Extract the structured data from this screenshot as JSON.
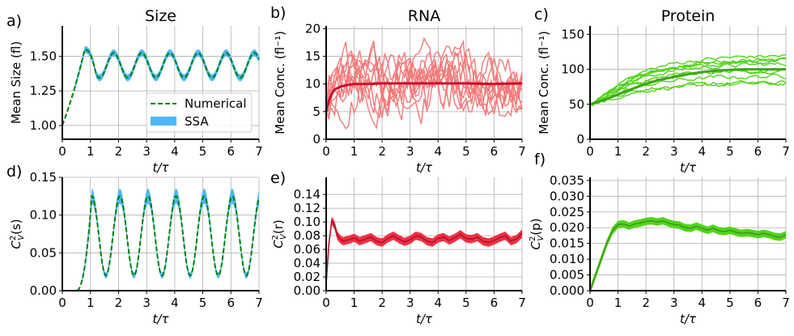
{
  "colors": {
    "size_band": "#4db8ff",
    "numerical": "#008000",
    "rna_traj": "#f47a7a",
    "rna_mean": "#c8102e",
    "rna_band": "#f03040",
    "rna_band_line": "#b01030",
    "prot_traj": "#52d41a",
    "prot_mean": "#3aa816",
    "prot_band": "#52d41a",
    "prot_band_line": "#3b9a1c"
  },
  "chart_data": [
    {
      "id": "a",
      "panel_label": "a)",
      "type": "line",
      "title": "Size",
      "xlabel": "t/τ",
      "ylabel": "Mean Size (fl)",
      "xlim": [
        0,
        7
      ],
      "ylim": [
        0.9,
        1.72
      ],
      "xticks": [
        0,
        1,
        2,
        3,
        4,
        5,
        6,
        7
      ],
      "yticks": [
        1.0,
        1.25,
        1.5
      ],
      "ytick_labels": [
        "1.00",
        "1.25",
        "1.50"
      ],
      "legend": {
        "position": "lower right",
        "entries": [
          "Numerical",
          "SSA"
        ]
      },
      "series": [
        {
          "name": "Numerical",
          "style": "dashed",
          "description": "exponential growth from 1.00 to ~1.55 then periodic oscillation between ~1.35 and ~1.52 with period 1"
        },
        {
          "name": "SSA",
          "style": "band",
          "description": "mean size band following numerical curve"
        }
      ]
    },
    {
      "id": "b",
      "panel_label": "b)",
      "type": "line",
      "title": "RNA",
      "xlabel": "t/τ",
      "ylabel": "Mean Conc. (fl⁻¹)",
      "xlim": [
        0,
        7
      ],
      "ylim": [
        0,
        20.5
      ],
      "xticks": [
        0,
        1,
        2,
        3,
        4,
        5,
        6,
        7
      ],
      "yticks": [
        0,
        5,
        10,
        15,
        20
      ],
      "series": [
        {
          "name": "mean",
          "x": [
            0,
            0.1,
            0.2,
            0.3,
            0.5,
            0.75,
            1,
            1.5,
            2,
            3,
            4,
            5,
            6,
            7
          ],
          "values": [
            5,
            7,
            8.2,
            9,
            9.5,
            9.8,
            10,
            10,
            10.1,
            10.1,
            10.1,
            10.1,
            10.0,
            10.1
          ]
        },
        {
          "name": "trajectories",
          "count": 10,
          "description": "individual stochastic trajectories fluctuating between ~1 and ~19"
        }
      ]
    },
    {
      "id": "c",
      "panel_label": "c)",
      "type": "line",
      "title": "Protein",
      "xlabel": "t/τ",
      "ylabel": "Mean Conc. (fl⁻¹)",
      "xlim": [
        0,
        7
      ],
      "ylim": [
        0,
        162
      ],
      "xticks": [
        0,
        1,
        2,
        3,
        4,
        5,
        6,
        7
      ],
      "yticks": [
        0,
        50,
        100,
        150
      ],
      "series": [
        {
          "name": "mean",
          "x": [
            0,
            0.5,
            1,
            1.5,
            2,
            2.5,
            3,
            3.5,
            4,
            4.5,
            5,
            5.5,
            6,
            6.5,
            7
          ],
          "values": [
            50,
            56,
            64,
            72,
            79,
            85,
            89,
            93,
            96,
            98,
            99,
            100,
            100,
            100,
            100
          ]
        },
        {
          "name": "trajectories",
          "count": 10,
          "description": "individual trajectories from 50 rising to 75–125"
        }
      ]
    },
    {
      "id": "d",
      "panel_label": "d)",
      "type": "line",
      "xlabel": "t/τ",
      "ylabel": "C²_V(s)",
      "xlim": [
        0,
        7
      ],
      "ylim": [
        0,
        0.15
      ],
      "xticks": [
        0,
        1,
        2,
        3,
        4,
        5,
        6,
        7
      ],
      "yticks": [
        0.0,
        0.05,
        0.1,
        0.15
      ],
      "ytick_labels": [
        "0.00",
        "0.05",
        "0.10",
        "0.15"
      ],
      "series": [
        {
          "name": "Numerical",
          "style": "dashed",
          "description": "oscillation between ~0.02 and ~0.125 with period 1, starting at 0 near t=0.5"
        },
        {
          "name": "SSA",
          "style": "band"
        }
      ]
    },
    {
      "id": "e",
      "panel_label": "e)",
      "type": "area",
      "xlabel": "t/τ",
      "ylabel": "C²_V(r)",
      "xlim": [
        0,
        7
      ],
      "ylim": [
        0,
        0.165
      ],
      "xticks": [
        0,
        1,
        2,
        3,
        4,
        5,
        6,
        7
      ],
      "yticks": [
        0.0,
        0.02,
        0.04,
        0.06,
        0.08,
        0.1,
        0.12,
        0.14
      ],
      "ytick_labels": [
        "0.00",
        "0.02",
        "0.04",
        "0.06",
        "0.08",
        "0.10",
        "0.12",
        "0.14"
      ],
      "series": [
        {
          "name": "CV2 RNA",
          "x": [
            0,
            0.1,
            0.2,
            0.3,
            0.4,
            0.5,
            0.6,
            0.8,
            1.0,
            1.2,
            1.4,
            1.6,
            1.8,
            2.0,
            2.2,
            2.4,
            2.6,
            2.8,
            3.0,
            3.2,
            3.4,
            3.6,
            3.8,
            4.0,
            4.2,
            4.4,
            4.6,
            4.8,
            5.0,
            5.2,
            5.4,
            5.6,
            5.8,
            6.0,
            6.2,
            6.4,
            6.6,
            6.8,
            7.0
          ],
          "values": [
            0.01,
            0.07,
            0.102,
            0.095,
            0.08,
            0.075,
            0.072,
            0.074,
            0.077,
            0.072,
            0.075,
            0.078,
            0.072,
            0.07,
            0.076,
            0.08,
            0.075,
            0.071,
            0.074,
            0.08,
            0.078,
            0.072,
            0.07,
            0.076,
            0.078,
            0.073,
            0.077,
            0.082,
            0.076,
            0.075,
            0.078,
            0.072,
            0.07,
            0.073,
            0.077,
            0.08,
            0.072,
            0.075,
            0.083
          ],
          "band_halfwidth": 0.006
        }
      ]
    },
    {
      "id": "f",
      "panel_label": "f)",
      "type": "area",
      "xlabel": "t/τ",
      "ylabel": "C²_V(p)",
      "xlim": [
        0,
        7
      ],
      "ylim": [
        0,
        0.036
      ],
      "xticks": [
        0,
        1,
        2,
        3,
        4,
        5,
        6,
        7
      ],
      "yticks": [
        0.0,
        0.005,
        0.01,
        0.015,
        0.02,
        0.025,
        0.03,
        0.035
      ],
      "ytick_labels": [
        "0.000",
        "0.005",
        "0.010",
        "0.015",
        "0.020",
        "0.025",
        "0.030",
        "0.035"
      ],
      "series": [
        {
          "name": "CV2 protein",
          "x": [
            0,
            0.2,
            0.4,
            0.6,
            0.8,
            1.0,
            1.2,
            1.4,
            1.6,
            1.8,
            2.0,
            2.2,
            2.4,
            2.6,
            2.8,
            3.0,
            3.2,
            3.4,
            3.6,
            3.8,
            4.0,
            4.2,
            4.4,
            4.6,
            4.8,
            5.0,
            5.2,
            5.4,
            5.6,
            5.8,
            6.0,
            6.2,
            6.4,
            6.6,
            6.8,
            7.0
          ],
          "values": [
            0.0,
            0.005,
            0.01,
            0.015,
            0.019,
            0.021,
            0.0212,
            0.0205,
            0.0212,
            0.0215,
            0.022,
            0.0222,
            0.0218,
            0.0222,
            0.0215,
            0.021,
            0.0208,
            0.02,
            0.0198,
            0.0205,
            0.0198,
            0.0192,
            0.0198,
            0.019,
            0.0188,
            0.0192,
            0.0186,
            0.0182,
            0.0184,
            0.0182,
            0.0178,
            0.0182,
            0.0178,
            0.0172,
            0.017,
            0.0178
          ],
          "band_halfwidth": 0.0012
        }
      ]
    }
  ]
}
